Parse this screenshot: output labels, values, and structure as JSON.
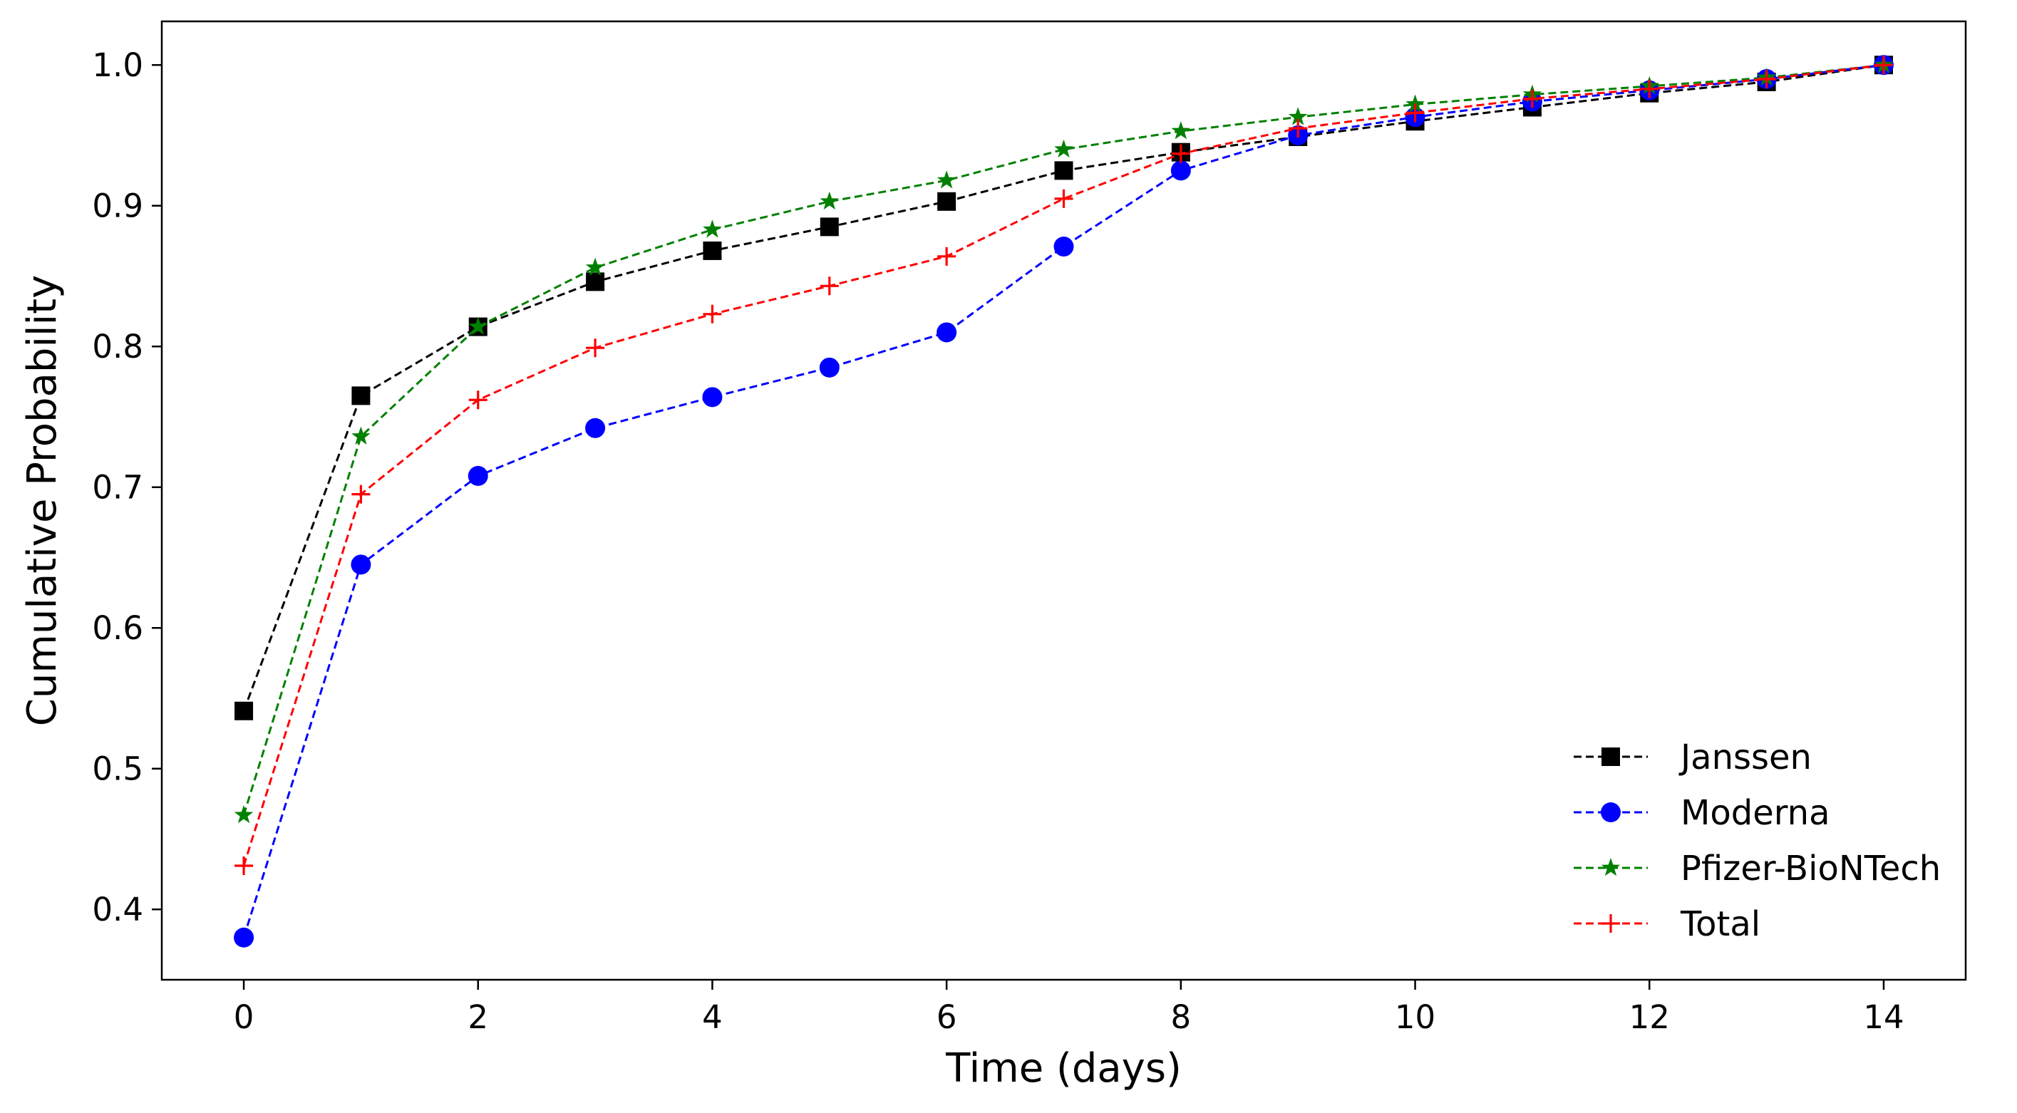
{
  "chart_data": {
    "type": "line",
    "title": "",
    "xlabel": "Time (days)",
    "ylabel": "Cumulative Probability",
    "xlim": [
      -0.7,
      14.7
    ],
    "ylim": [
      0.35,
      1.031
    ],
    "xticks": [
      0,
      2,
      4,
      6,
      8,
      10,
      12,
      14
    ],
    "xtick_labels": [
      "0",
      "2",
      "4",
      "6",
      "8",
      "10",
      "12",
      "14"
    ],
    "yticks": [
      0.4,
      0.5,
      0.6,
      0.7,
      0.8,
      0.9,
      1.0
    ],
    "ytick_labels": [
      "0.4",
      "0.5",
      "0.6",
      "0.7",
      "0.8",
      "0.9",
      "1.0"
    ],
    "grid": false,
    "legend_position": "lower-right",
    "x": [
      0,
      1,
      2,
      3,
      4,
      5,
      6,
      7,
      8,
      9,
      10,
      11,
      12,
      13,
      14
    ],
    "series": [
      {
        "name": "Janssen",
        "color": "#000000",
        "marker": "square",
        "line_style": "dashed",
        "values": [
          0.541,
          0.765,
          0.814,
          0.846,
          0.868,
          0.885,
          0.903,
          0.925,
          0.938,
          0.949,
          0.96,
          0.97,
          0.98,
          0.988,
          1.0
        ]
      },
      {
        "name": "Moderna",
        "color": "#0000ff",
        "marker": "circle",
        "line_style": "dashed",
        "values": [
          0.38,
          0.645,
          0.708,
          0.742,
          0.764,
          0.785,
          0.81,
          0.871,
          0.925,
          0.95,
          0.963,
          0.974,
          0.982,
          0.99,
          1.0
        ]
      },
      {
        "name": "Pfizer-BioNTech",
        "color": "#008000",
        "marker": "star",
        "line_style": "dashed",
        "values": [
          0.467,
          0.736,
          0.814,
          0.856,
          0.883,
          0.903,
          0.918,
          0.94,
          0.953,
          0.963,
          0.972,
          0.979,
          0.985,
          0.991,
          1.0
        ]
      },
      {
        "name": "Total",
        "color": "#ff0000",
        "marker": "plus",
        "line_style": "dashed",
        "values": [
          0.431,
          0.695,
          0.762,
          0.799,
          0.823,
          0.843,
          0.864,
          0.905,
          0.937,
          0.955,
          0.966,
          0.976,
          0.983,
          0.99,
          1.0
        ]
      }
    ]
  }
}
